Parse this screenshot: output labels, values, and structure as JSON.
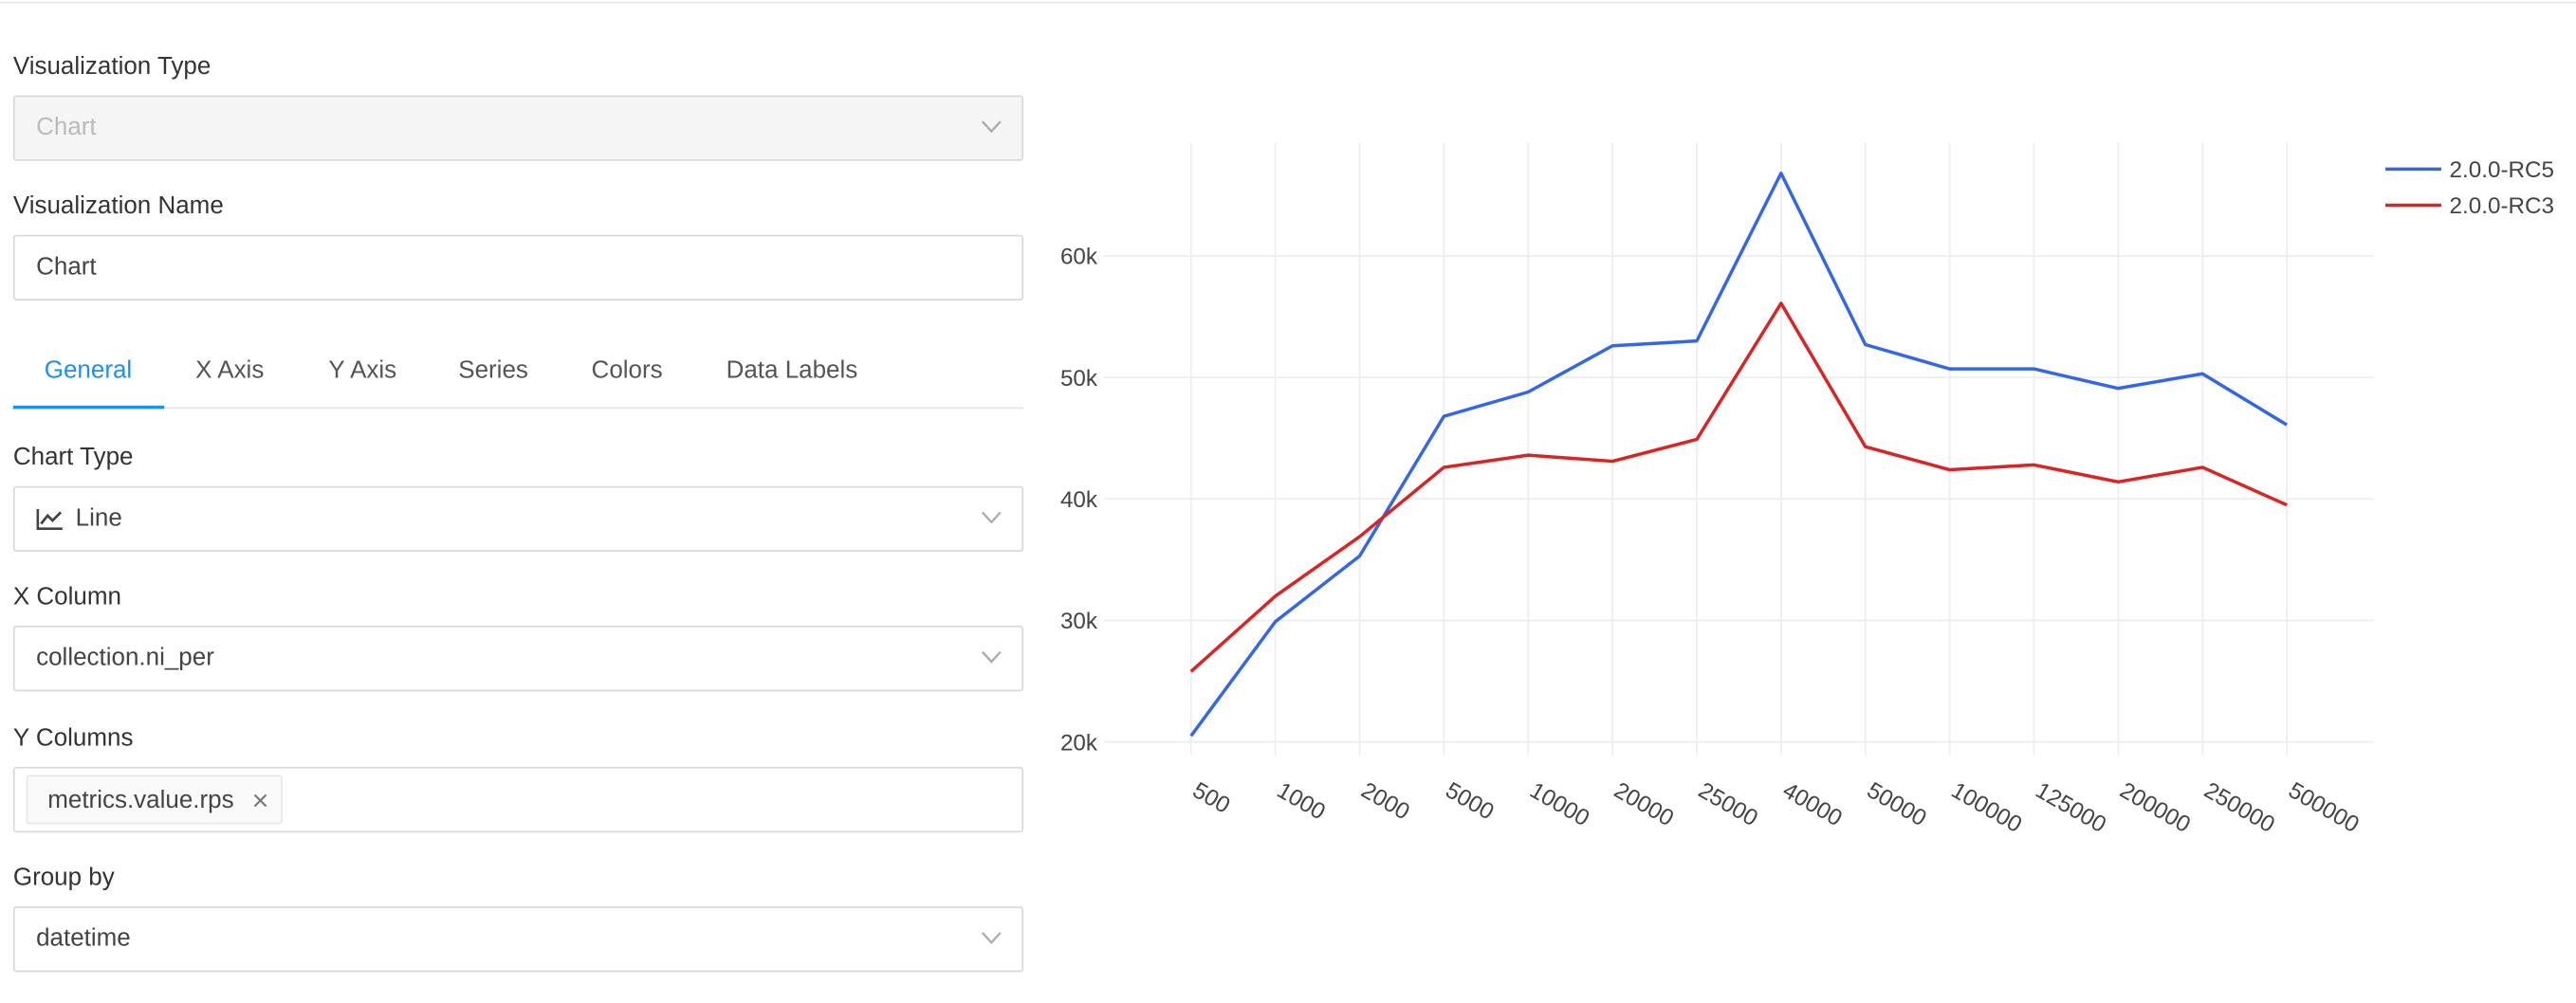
{
  "form": {
    "visualization_type": {
      "label": "Visualization Type",
      "value": "Chart"
    },
    "visualization_name": {
      "label": "Visualization Name",
      "value": "Chart"
    },
    "tabs": [
      "General",
      "X Axis",
      "Y Axis",
      "Series",
      "Colors",
      "Data Labels"
    ],
    "chart_type": {
      "label": "Chart Type",
      "value": "Line"
    },
    "x_column": {
      "label": "X Column",
      "value": "collection.ni_per"
    },
    "y_columns": {
      "label": "Y Columns",
      "value": "metrics.value.rps"
    },
    "group_by": {
      "label": "Group by",
      "value": "datetime"
    }
  },
  "chart_data": {
    "type": "line",
    "categories": [
      "500",
      "1000",
      "2000",
      "5000",
      "10000",
      "20000",
      "25000",
      "40000",
      "50000",
      "100000",
      "125000",
      "200000",
      "250000",
      "500000"
    ],
    "series": [
      {
        "name": "2.0.0-RC5",
        "color": "#3366ee",
        "values": [
          20500,
          29900,
          35300,
          46800,
          48800,
          52600,
          53000,
          66800,
          52700,
          50700,
          50700,
          49100,
          50300,
          46100
        ]
      },
      {
        "name": "2.0.0-RC3",
        "color": "#dd2222",
        "values": [
          25800,
          32000,
          36900,
          42600,
          43600,
          43100,
          44900,
          56100,
          44300,
          42400,
          42800,
          41400,
          42600,
          39500
        ]
      }
    ],
    "ylim": [
      18900,
      69300
    ],
    "yticks": [
      {
        "value": 20000,
        "label": "20k"
      },
      {
        "value": 30000,
        "label": "30k"
      },
      {
        "value": 40000,
        "label": "40k"
      },
      {
        "value": 50000,
        "label": "50k"
      },
      {
        "value": 60000,
        "label": "60k"
      }
    ],
    "grid": true,
    "legend": "top-right"
  }
}
